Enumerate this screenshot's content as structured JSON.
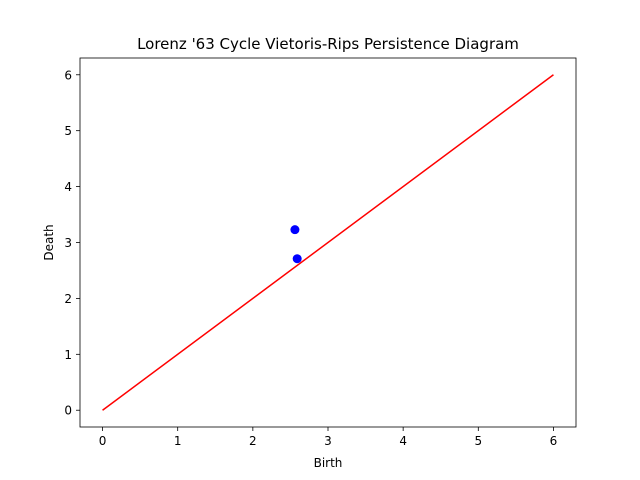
{
  "chart_data": {
    "type": "scatter",
    "title": "Lorenz '63 Cycle Vietoris-Rips Persistence Diagram",
    "xlabel": "Birth",
    "ylabel": "Death",
    "xlim": [
      -0.3,
      6.3
    ],
    "ylim": [
      -0.3,
      6.3
    ],
    "xticks": [
      0,
      1,
      2,
      3,
      4,
      5,
      6
    ],
    "yticks": [
      0,
      1,
      2,
      3,
      4,
      5,
      6
    ],
    "grid": false,
    "series": [
      {
        "type": "scatter",
        "color": "#0000ff",
        "points": [
          {
            "x": 2.56,
            "y": 3.23
          },
          {
            "x": 2.59,
            "y": 2.71
          }
        ]
      },
      {
        "type": "line",
        "color": "#ff0000",
        "points": [
          {
            "x": 0,
            "y": 0
          },
          {
            "x": 6,
            "y": 6
          }
        ]
      }
    ]
  }
}
